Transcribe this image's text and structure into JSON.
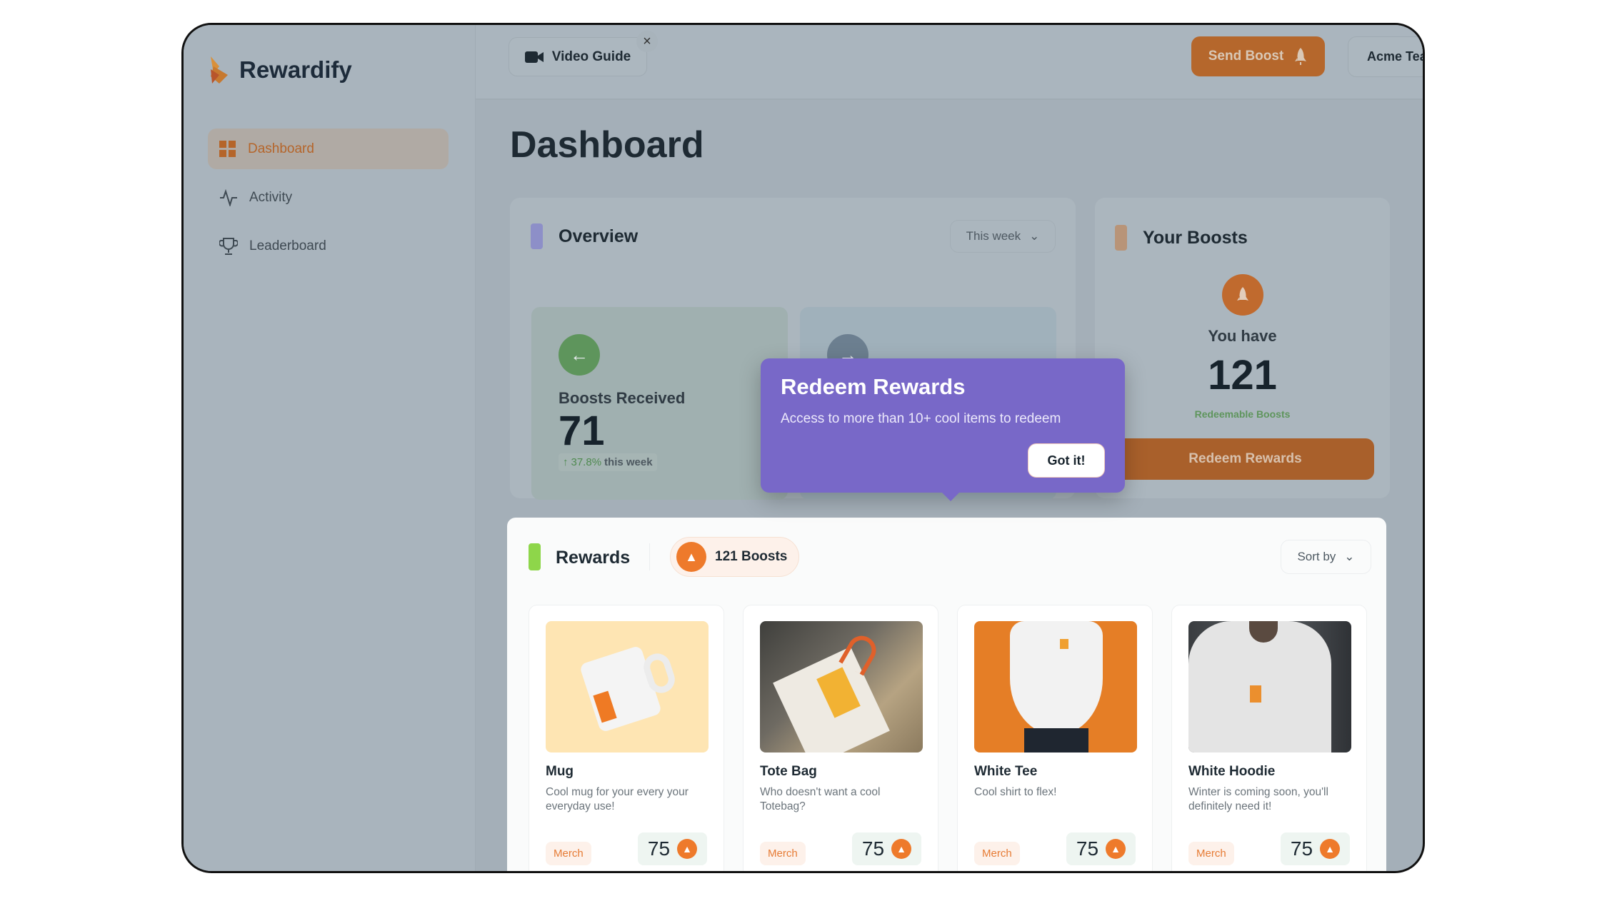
{
  "app": {
    "brand": "Rewardify"
  },
  "sidebar": {
    "items": [
      {
        "label": "Dashboard",
        "icon": "grid-icon",
        "active": true
      },
      {
        "label": "Activity",
        "icon": "activity-icon"
      },
      {
        "label": "Leaderboard",
        "icon": "trophy-icon"
      }
    ]
  },
  "header": {
    "video_guide": "Video Guide",
    "send_boost": "Send Boost",
    "team": "Acme Team"
  },
  "page": {
    "title": "Dashboard"
  },
  "overview": {
    "title": "Overview",
    "period": "This week",
    "received_label": "Boosts Received",
    "received_value": "71",
    "change": "37.8%",
    "change_suffix": "this week"
  },
  "boosts": {
    "title": "Your Boosts",
    "you_have": "You have",
    "value": "121",
    "sub": "Redeemable Boosts",
    "redeem": "Redeem Rewards"
  },
  "tooltip": {
    "title": "Redeem Rewards",
    "text": "Access to more than 10+ cool items to redeem",
    "button": "Got it!"
  },
  "rewards": {
    "title": "Rewards",
    "badge": "121 Boosts",
    "sort": "Sort by",
    "items": [
      {
        "name": "Mug",
        "desc": "Cool mug for your every your everyday use!",
        "tag": "Merch",
        "price": "75"
      },
      {
        "name": "Tote Bag",
        "desc": "Who doesn't want a cool Totebag?",
        "tag": "Merch",
        "price": "75"
      },
      {
        "name": "White Tee",
        "desc": "Cool shirt to flex!",
        "tag": "Merch",
        "price": "75"
      },
      {
        "name": "White Hoodie",
        "desc": "Winter is coming soon, you'll definitely need it!",
        "tag": "Merch",
        "price": "75"
      }
    ]
  },
  "colors": {
    "accent": "#ee7a2b",
    "tooltip": "#7868c8",
    "overlay_bg": "#a4afb8"
  }
}
